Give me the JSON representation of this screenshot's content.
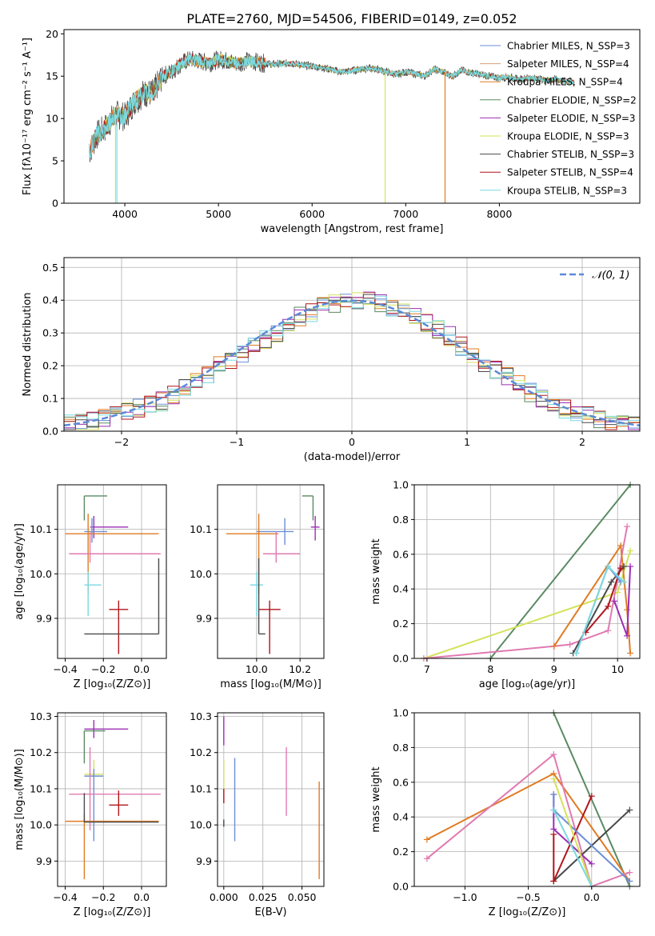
{
  "figure": {
    "title": "PLATE=2760, MJD=54506, FIBERID=0149, z=0.052",
    "colors": {
      "Chabrier MILES": "#6b8fd6",
      "Salpeter MILES": "#d6a07a",
      "Kroupa MILES": "#e07b22",
      "Chabrier ELODIE": "#5a8a62",
      "Salpeter ELODIE": "#9b2fb3",
      "Kroupa ELODIE": "#d4e25a",
      "Chabrier STELIB": "#4a4a4a",
      "Salpeter STELIB": "#b0141b",
      "Kroupa STELIB": "#7ad9e0",
      "extra": "#e07ab0",
      "normal": "#5b8bd6"
    }
  },
  "chart_data": [
    {
      "type": "line",
      "panel": "spectrum",
      "xlabel": "wavelength [Angstrom, rest frame]",
      "ylabel": "Flux [fλ10⁻¹⁷ erg cm⁻² s⁻¹ A⁻¹]",
      "xlim": [
        3350,
        9500
      ],
      "ylim": [
        0,
        20.5
      ],
      "xticks": [
        4000,
        5000,
        6000,
        7000,
        8000
      ],
      "yticks": [
        0,
        5,
        10,
        15,
        20
      ],
      "legend_position": "top-right",
      "series": [
        {
          "name": "Chabrier MILES, N_SSP=3"
        },
        {
          "name": "Salpeter MILES, N_SSP=4"
        },
        {
          "name": "Kroupa MILES, N_SSP=4"
        },
        {
          "name": "Chabrier ELODIE, N_SSP=2"
        },
        {
          "name": "Salpeter ELODIE, N_SSP=3"
        },
        {
          "name": "Kroupa ELODIE, N_SSP=3"
        },
        {
          "name": "Chabrier STELIB, N_SSP=3"
        },
        {
          "name": "Salpeter STELIB, N_SSP=4"
        },
        {
          "name": "Kroupa STELIB, N_SSP=3"
        }
      ],
      "continuum": {
        "x": [
          3620,
          3700,
          3800,
          3900,
          4000,
          4100,
          4200,
          4300,
          4400,
          4500,
          4600,
          4700,
          4800,
          4900,
          5000,
          5100,
          5200,
          5300,
          5400,
          5500,
          5600,
          5700,
          5800,
          5900,
          6000,
          6100,
          6200,
          6300,
          6400,
          6500,
          6600,
          6700,
          6800,
          6900,
          7000,
          7100,
          7200,
          7300,
          7400,
          7500,
          7600,
          7700,
          7800,
          7900,
          8000,
          8100,
          8200,
          8300,
          8400,
          8500,
          8600,
          8700,
          8800
        ],
        "y": [
          6.0,
          8.0,
          9.0,
          10.5,
          10.2,
          12.0,
          13.0,
          13.0,
          15.0,
          15.5,
          16.5,
          17.0,
          16.8,
          16.5,
          17.0,
          16.8,
          16.5,
          16.8,
          16.7,
          16.5,
          16.4,
          16.5,
          16.5,
          16.3,
          16.2,
          16.0,
          15.8,
          15.5,
          15.6,
          15.8,
          15.9,
          15.8,
          15.5,
          15.2,
          15.5,
          15.3,
          15.0,
          15.8,
          15.5,
          15.0,
          15.7,
          15.4,
          15.2,
          15.0,
          14.8,
          14.9,
          14.6,
          14.8,
          14.7,
          14.5,
          14.6,
          14.4,
          14.3
        ]
      }
    },
    {
      "type": "bar",
      "panel": "residuals",
      "xlabel": "(data-model)/error",
      "ylabel": "Normed distribution",
      "xlim": [
        -2.5,
        2.5
      ],
      "ylim": [
        0,
        0.53
      ],
      "xticks": [
        -2,
        -1,
        0,
        1,
        2
      ],
      "yticks": [
        0.0,
        0.1,
        0.2,
        0.3,
        0.4,
        0.5
      ],
      "grid": true,
      "legend_position": "top-right",
      "legend": "𝒩(0, 1)",
      "bin_edges": [
        -2.5,
        -2.4,
        -2.3,
        -2.2,
        -2.1,
        -2.0,
        -1.9,
        -1.8,
        -1.7,
        -1.6,
        -1.5,
        -1.4,
        -1.3,
        -1.2,
        -1.1,
        -1.0,
        -0.9,
        -0.8,
        -0.7,
        -0.6,
        -0.5,
        -0.4,
        -0.3,
        -0.2,
        -0.1,
        0.0,
        0.1,
        0.2,
        0.3,
        0.4,
        0.5,
        0.6,
        0.7,
        0.8,
        0.9,
        1.0,
        1.1,
        1.2,
        1.3,
        1.4,
        1.5,
        1.6,
        1.7,
        1.8,
        1.9,
        2.0,
        2.1,
        2.2,
        2.3,
        2.4,
        2.5
      ],
      "base_values": [
        0.02,
        0.025,
        0.03,
        0.04,
        0.05,
        0.06,
        0.07,
        0.08,
        0.09,
        0.11,
        0.13,
        0.15,
        0.17,
        0.2,
        0.22,
        0.24,
        0.26,
        0.28,
        0.3,
        0.33,
        0.35,
        0.36,
        0.38,
        0.39,
        0.4,
        0.4,
        0.4,
        0.39,
        0.38,
        0.37,
        0.35,
        0.33,
        0.31,
        0.29,
        0.26,
        0.24,
        0.21,
        0.19,
        0.17,
        0.15,
        0.12,
        0.1,
        0.09,
        0.07,
        0.06,
        0.05,
        0.04,
        0.03,
        0.03,
        0.02
      ]
    },
    {
      "type": "scatter",
      "panel": "age-vs-Z",
      "xlabel": "Z [log₁₀(Z/Z⊙)]",
      "ylabel": "age  [log₁₀(age/yr)]",
      "xlim": [
        -0.44,
        0.13
      ],
      "ylim": [
        9.81,
        10.2
      ],
      "xticks": [
        -0.4,
        -0.2,
        0.0
      ],
      "yticks": [
        9.9,
        10.0,
        10.1
      ],
      "grid": true,
      "errorbars": [
        {
          "c": "Chabrier ELODIE",
          "x": -0.3,
          "y": 10.175,
          "xl": 0.0,
          "xr": 0.12,
          "yl": 0.055,
          "yr": 0.0
        },
        {
          "c": "Salpeter ELODIE",
          "x": -0.25,
          "y": 10.105,
          "xl": 0.02,
          "xr": 0.18,
          "yl": 0.025,
          "yr": 0.025
        },
        {
          "c": "Chabrier MILES",
          "x": -0.26,
          "y": 10.095,
          "xl": 0.04,
          "xr": 0.08,
          "yl": 0.025,
          "yr": 0.03
        },
        {
          "c": "Kroupa MILES",
          "x": -0.28,
          "y": 10.09,
          "xl": 0.12,
          "xr": 0.37,
          "yl": 0.135,
          "yr": 0.045
        },
        {
          "c": "extra",
          "x": -0.27,
          "y": 10.045,
          "xl": 0.11,
          "xr": 0.37,
          "yl": 0.02,
          "yr": 0.05
        },
        {
          "c": "Kroupa STELIB",
          "x": -0.28,
          "y": 9.975,
          "xl": 0.02,
          "xr": 0.07,
          "yl": 0.07,
          "yr": 0.03
        },
        {
          "c": "Salpeter STELIB",
          "x": -0.12,
          "y": 9.92,
          "xl": 0.05,
          "xr": 0.05,
          "yl": 0.1,
          "yr": 0.02
        },
        {
          "c": "Chabrier STELIB",
          "x": 0.09,
          "y": 9.865,
          "xl": 0.39,
          "xr": 0.0,
          "yl": 0.0,
          "yr": 0.17
        }
      ]
    },
    {
      "type": "scatter",
      "panel": "age-vs-mass",
      "xlabel": "mass [log₁₀(M/M⊙)]",
      "ylabel": "",
      "xlim": [
        9.82,
        10.31
      ],
      "ylim": [
        9.81,
        10.2
      ],
      "xticks": [
        10.0,
        10.2
      ],
      "yticks": [
        9.9,
        10.0,
        10.1
      ],
      "grid": true,
      "errorbars": [
        {
          "c": "Chabrier ELODIE",
          "x": 10.26,
          "y": 10.175,
          "xl": 0.05,
          "xr": 0.0,
          "yl": 0.055,
          "yr": 0.0
        },
        {
          "c": "Salpeter ELODIE",
          "x": 10.27,
          "y": 10.105,
          "xl": 0.02,
          "xr": 0.02,
          "yl": 0.03,
          "yr": 0.025
        },
        {
          "c": "Chabrier MILES",
          "x": 10.13,
          "y": 10.095,
          "xl": 0.13,
          "xr": 0.04,
          "yl": 0.03,
          "yr": 0.03
        },
        {
          "c": "Kroupa MILES",
          "x": 10.01,
          "y": 10.09,
          "xl": 0.15,
          "xr": 0.09,
          "yl": 0.135,
          "yr": 0.045
        },
        {
          "c": "extra",
          "x": 10.09,
          "y": 10.045,
          "xl": 0.06,
          "xr": 0.11,
          "yl": 0.02,
          "yr": 0.05
        },
        {
          "c": "Kroupa STELIB",
          "x": 10.0,
          "y": 9.975,
          "xl": 0.03,
          "xr": 0.03,
          "yl": 0.07,
          "yr": 0.03
        },
        {
          "c": "Salpeter STELIB",
          "x": 10.06,
          "y": 9.92,
          "xl": 0.05,
          "xr": 0.05,
          "yl": 0.1,
          "yr": 0.02
        },
        {
          "c": "Chabrier STELIB",
          "x": 10.01,
          "y": 9.865,
          "xl": 0.0,
          "xr": 0.03,
          "yl": 0.0,
          "yr": 0.17
        }
      ]
    },
    {
      "type": "line",
      "panel": "mass-weight-vs-age",
      "xlabel": "age  [log₁₀(age/yr)]",
      "ylabel": "mass weight",
      "xlim": [
        6.8,
        10.35
      ],
      "ylim": [
        0.0,
        1.0
      ],
      "xticks": [
        7,
        8,
        9,
        10
      ],
      "yticks": [
        0.0,
        0.2,
        0.4,
        0.6,
        0.8,
        1.0
      ],
      "grid": true,
      "series": [
        {
          "c": "Chabrier ELODIE",
          "x": [
            8.0,
            10.2
          ],
          "y": [
            0.0,
            1.0
          ]
        },
        {
          "c": "Kroupa ELODIE",
          "x": [
            6.95,
            10.0,
            10.2
          ],
          "y": [
            0.0,
            0.38,
            0.62
          ]
        },
        {
          "c": "extra",
          "x": [
            6.95,
            9.0,
            9.25,
            9.85,
            10.15
          ],
          "y": [
            0.0,
            0.07,
            0.08,
            0.16,
            0.76
          ]
        },
        {
          "c": "Kroupa MILES",
          "x": [
            9.0,
            10.05,
            10.15,
            10.2
          ],
          "y": [
            0.07,
            0.65,
            0.28,
            0.03
          ]
        },
        {
          "c": "Chabrier STELIB",
          "x": [
            9.3,
            9.9,
            10.1
          ],
          "y": [
            0.03,
            0.44,
            0.53
          ]
        },
        {
          "c": "Salpeter STELIB",
          "x": [
            9.5,
            9.85,
            10.05
          ],
          "y": [
            0.15,
            0.3,
            0.52
          ]
        },
        {
          "c": "Salpeter ELODIE",
          "x": [
            9.95,
            10.15,
            10.2
          ],
          "y": [
            0.33,
            0.13,
            0.53
          ]
        },
        {
          "c": "Chabrier MILES",
          "x": [
            9.35,
            9.85,
            10.05
          ],
          "y": [
            0.03,
            0.53,
            0.44
          ]
        },
        {
          "c": "Kroupa STELIB",
          "x": [
            9.35,
            9.85,
            10.1
          ],
          "y": [
            0.03,
            0.53,
            0.44
          ]
        }
      ]
    },
    {
      "type": "scatter",
      "panel": "mass-vs-Z",
      "xlabel": "Z [log₁₀(Z/Z⊙)]",
      "ylabel": "mass [log₁₀(M/M⊙)]",
      "xlim": [
        -0.44,
        0.13
      ],
      "ylim": [
        9.83,
        10.31
      ],
      "xticks": [
        -0.4,
        -0.2,
        0.0
      ],
      "yticks": [
        9.9,
        10.0,
        10.1,
        10.2,
        10.3
      ],
      "grid": true,
      "errorbars": [
        {
          "c": "Salpeter ELODIE",
          "x": -0.25,
          "y": 10.265,
          "xl": 0.05,
          "xr": 0.18,
          "yl": 0.025,
          "yr": 0.025
        },
        {
          "c": "Chabrier ELODIE",
          "x": -0.3,
          "y": 10.26,
          "xl": 0.0,
          "xr": 0.11,
          "yl": 0.09,
          "yr": 0.0
        },
        {
          "c": "Kroupa ELODIE",
          "x": -0.25,
          "y": 10.14,
          "xl": 0.05,
          "xr": 0.05,
          "yl": 0.04,
          "yr": 0.04
        },
        {
          "c": "Chabrier MILES",
          "x": -0.25,
          "y": 10.135,
          "xl": 0.05,
          "xr": 0.05,
          "yl": 0.18,
          "yr": 0.02
        },
        {
          "c": "extra",
          "x": -0.27,
          "y": 10.085,
          "xl": 0.11,
          "xr": 0.37,
          "yl": 0.1,
          "yr": 0.13
        },
        {
          "c": "Salpeter STELIB",
          "x": -0.12,
          "y": 10.055,
          "xl": 0.05,
          "xr": 0.05,
          "yl": 0.03,
          "yr": 0.04
        },
        {
          "c": "Kroupa MILES",
          "x": -0.3,
          "y": 10.01,
          "xl": 0.1,
          "xr": 0.39,
          "yl": 0.16,
          "yr": 0.02
        },
        {
          "c": "Chabrier STELIB",
          "x": -0.3,
          "y": 10.008,
          "xl": 0.0,
          "xr": 0.39,
          "yl": 0.0,
          "yr": 0.08
        }
      ]
    },
    {
      "type": "scatter",
      "panel": "mass-vs-EBV",
      "xlabel": "E(B-V)",
      "ylabel": "",
      "xlim": [
        -0.004,
        0.064
      ],
      "ylim": [
        9.83,
        10.31
      ],
      "xticks": [
        0.0,
        0.025,
        0.05
      ],
      "xticklabels": [
        "0.000",
        "0.025",
        "0.050"
      ],
      "yticks": [
        9.9,
        10.0,
        10.1,
        10.2,
        10.3
      ],
      "grid": true,
      "errorbars": [
        {
          "c": "Salpeter ELODIE",
          "x": 0.0,
          "y": 10.26,
          "xl": 0.0,
          "xr": 0.0,
          "yl": 0.04,
          "yr": 0.04
        },
        {
          "c": "Kroupa ELODIE",
          "x": 0.0,
          "y": 10.14,
          "xl": 0.0,
          "xr": 0.0,
          "yl": 0.04,
          "yr": 0.04
        },
        {
          "c": "Chabrier MILES",
          "x": 0.007,
          "y": 10.075,
          "xl": 0.0,
          "xr": 0.0,
          "yl": 0.12,
          "yr": 0.11
        },
        {
          "c": "extra",
          "x": 0.04,
          "y": 10.115,
          "xl": 0.0,
          "xr": 0.0,
          "yl": 0.09,
          "yr": 0.1
        },
        {
          "c": "Kroupa MILES",
          "x": 0.061,
          "y": 9.985,
          "xl": 0.0,
          "xr": 0.0,
          "yl": 0.135,
          "yr": 0.135
        },
        {
          "c": "Salpeter STELIB",
          "x": 0.0,
          "y": 10.08,
          "xl": 0.0,
          "xr": 0.0,
          "yl": 0.02,
          "yr": 0.02
        },
        {
          "c": "Chabrier STELIB",
          "x": 0.0,
          "y": 10.005,
          "xl": 0.0,
          "xr": 0.0,
          "yl": 0.01,
          "yr": 0.01
        }
      ]
    },
    {
      "type": "line",
      "panel": "mass-weight-vs-Z",
      "xlabel": "Z [log₁₀(Z/Z⊙)]",
      "ylabel": "mass weight",
      "xlim": [
        -1.4,
        0.38
      ],
      "ylim": [
        0.0,
        1.0
      ],
      "xticks": [
        -1.0,
        -0.5,
        0.0
      ],
      "xticklabels": [
        "−1.0",
        "−0.5",
        "0.0"
      ],
      "yticks": [
        0.0,
        0.2,
        0.4,
        0.6,
        0.8,
        1.0
      ],
      "grid": true,
      "series": [
        {
          "c": "Chabrier ELODIE",
          "x": [
            -0.3,
            0.3
          ],
          "y": [
            1.0,
            0.0
          ]
        },
        {
          "c": "Kroupa MILES",
          "x": [
            -1.3,
            -0.3,
            0.3
          ],
          "y": [
            0.27,
            0.65,
            0.03
          ]
        },
        {
          "c": "extra",
          "x": [
            -1.3,
            -0.3,
            0.0,
            0.3
          ],
          "y": [
            0.16,
            0.76,
            0.0,
            0.08
          ]
        },
        {
          "c": "Chabrier STELIB",
          "x": [
            -0.3,
            0.3
          ],
          "y": [
            0.03,
            0.44
          ]
        },
        {
          "c": "Salpeter STELIB",
          "x": [
            -0.3,
            -0.3,
            0.0
          ],
          "y": [
            0.3,
            0.03,
            0.52
          ]
        },
        {
          "c": "Salpeter ELODIE",
          "x": [
            -0.3,
            -0.3,
            0.0
          ],
          "y": [
            0.53,
            0.33,
            0.13
          ]
        },
        {
          "c": "Chabrier MILES",
          "x": [
            -0.3,
            -0.3,
            0.3
          ],
          "y": [
            0.53,
            0.44,
            0.03
          ]
        },
        {
          "c": "Kroupa ELODIE",
          "x": [
            -0.3,
            0.0
          ],
          "y": [
            0.62,
            0.0
          ]
        },
        {
          "c": "Kroupa STELIB",
          "x": [
            -0.3,
            0.0
          ],
          "y": [
            0.44,
            0.0
          ]
        }
      ]
    }
  ]
}
